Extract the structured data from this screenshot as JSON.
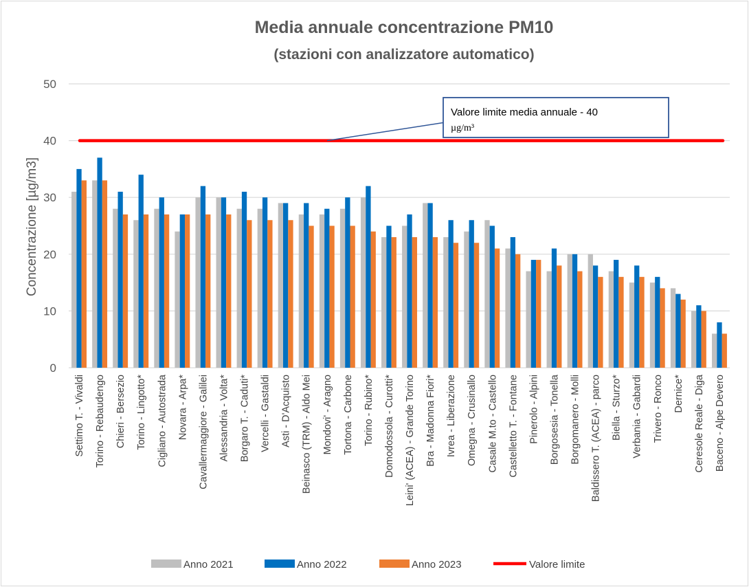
{
  "chart_data": {
    "type": "bar",
    "title": "Media annuale concentrazione PM10",
    "subtitle": "(stazioni con analizzatore automatico)",
    "xlabel": "",
    "ylabel": "Concentrazione [µg/m3]",
    "ylim": [
      0,
      50
    ],
    "yticks": [
      0,
      10,
      20,
      30,
      40,
      50
    ],
    "grid": true,
    "legend_position": "bottom",
    "categories": [
      "Settimo T. - Vivaldi",
      "Torino - Rebaudengo",
      "Chieri - Bersezio",
      "Torino - Lingotto*",
      "Cigliano - Autostrada",
      "Novara - Arpa*",
      "Cavallermaggiore - Galilei",
      "Alessandria - Volta*",
      "Borgaro T. - Caduti*",
      "Vercelli - Gastaldi",
      "Asti - D'Acquisto",
      "Beinasco (TRM) - Aldo Mei",
      "Mondovi' - Aragno",
      "Tortona - Carbone",
      "Torino - Rubino*",
      "Domodossola - Curotti*",
      "Leini' (ACEA) - Grande Torino",
      "Bra - Madonna Fiori*",
      "Ivrea - Liberazione",
      "Omegna - Crusinallo",
      "Casale M.to - Castello",
      "Castelletto T. - Fontane",
      "Pinerolo - Alpini",
      "Borgosesia - Tonella",
      "Borgomanero - Molli",
      "Baldissero T. (ACEA) - parco",
      "Biella - Sturzo*",
      "Verbania - Gabardi",
      "Trivero - Ronco",
      "Dernice*",
      "Ceresole Reale - Diga",
      "Baceno - Alpe Devero"
    ],
    "series": [
      {
        "name": "Anno 2021",
        "color": "#bfbfbf",
        "values": [
          31,
          33,
          28,
          26,
          28,
          24,
          30,
          30,
          28,
          28,
          29,
          27,
          27,
          28,
          30,
          23,
          25,
          29,
          23,
          24,
          26,
          21,
          17,
          17,
          20,
          20,
          17,
          15,
          15,
          14,
          10,
          6
        ]
      },
      {
        "name": "Anno 2022",
        "color": "#0070c0",
        "values": [
          35,
          37,
          31,
          34,
          30,
          27,
          32,
          30,
          31,
          30,
          29,
          29,
          28,
          30,
          32,
          25,
          27,
          29,
          26,
          26,
          25,
          23,
          19,
          21,
          20,
          18,
          19,
          18,
          16,
          13,
          11,
          8
        ]
      },
      {
        "name": "Anno 2023",
        "color": "#ed7d31",
        "values": [
          33,
          33,
          27,
          27,
          27,
          27,
          27,
          27,
          26,
          26,
          26,
          25,
          25,
          25,
          24,
          23,
          23,
          23,
          22,
          22,
          21,
          20,
          19,
          18,
          17,
          16,
          16,
          16,
          14,
          12,
          10,
          6
        ]
      }
    ],
    "limit": {
      "name": "Valore  limite",
      "value": 40,
      "color": "#ff0000"
    },
    "annotation": {
      "line1": "Valore limite media annuale  - 40",
      "line2": "µg/m³",
      "border_color": "#2f5597"
    }
  }
}
